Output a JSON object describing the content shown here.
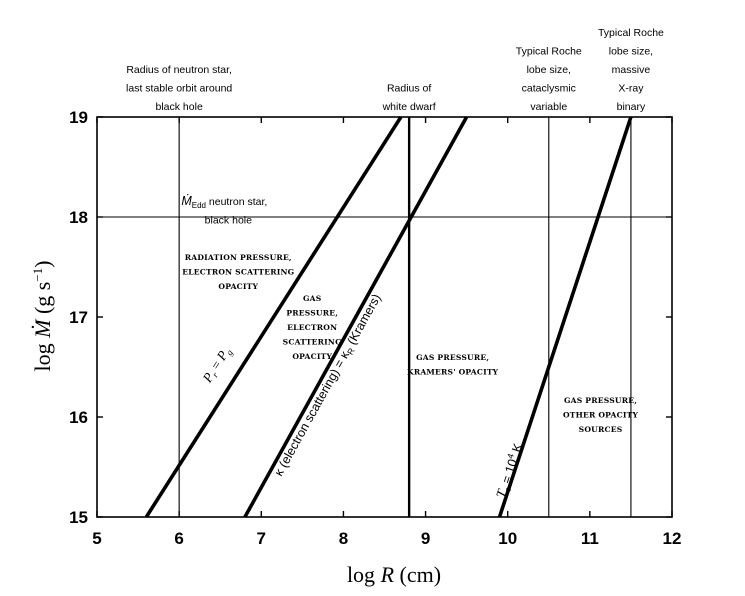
{
  "chart_data": {
    "type": "line",
    "xlabel_main": "log ",
    "xlabel_var": "R",
    "xlabel_unit": " (cm)",
    "ylabel_main": "log ",
    "ylabel_var": "Ṁ",
    "ylabel_unit": " (g s",
    "ylabel_exp": "−1",
    "ylabel_close": ")",
    "xlim": [
      5,
      12
    ],
    "ylim": [
      15,
      19
    ],
    "x_ticks": [
      5,
      6,
      7,
      8,
      9,
      10,
      11,
      12
    ],
    "y_ticks": [
      15,
      16,
      17,
      18,
      19
    ],
    "series": [
      {
        "id": "pr_eq_pg",
        "points": [
          [
            5.6,
            15.0
          ],
          [
            8.7,
            19.0
          ]
        ],
        "label_main": "P",
        "label_sub1": "r",
        "label_eq": " = ",
        "label_sub2": "g",
        "label_at": [
          6.5,
          16.5
        ],
        "stroke": "#000000"
      },
      {
        "id": "kappa_es_eq_kappa_r",
        "points": [
          [
            6.8,
            15.0
          ],
          [
            9.5,
            19.0
          ]
        ],
        "label_text1": "κ (electron scattering)  =  κ",
        "label_sub": "R",
        "label_text2": " (Kramers)",
        "label_at": [
          7.85,
          16.3
        ],
        "stroke": "#000000"
      },
      {
        "id": "tc_1e4",
        "points": [
          [
            9.9,
            15.0
          ],
          [
            11.5,
            19.0
          ]
        ],
        "label_main": "T",
        "label_sub": "c",
        "label_eq": " = 10",
        "label_sup": "4",
        "label_unit": " K",
        "label_at": [
          10.07,
          15.45
        ],
        "stroke": "#000000"
      }
    ],
    "reference_lines": [
      {
        "orientation": "vertical",
        "value": 6.0,
        "weight": "thin",
        "label": [
          "Radius of neutron star,",
          "last stable orbit around",
          "black hole"
        ]
      },
      {
        "orientation": "vertical",
        "value": 8.8,
        "weight": "thick",
        "label": [
          "Radius of",
          "white dwarf"
        ]
      },
      {
        "orientation": "vertical",
        "value": 10.5,
        "weight": "thin",
        "label": [
          "Typical Roche",
          "lobe size,",
          "cataclysmic",
          "variable"
        ]
      },
      {
        "orientation": "vertical",
        "value": 11.5,
        "weight": "thin",
        "label": [
          "Typical Roche",
          "lobe size,",
          "massive",
          "X-ray",
          "binary"
        ]
      },
      {
        "orientation": "horizontal",
        "value": 18.0,
        "weight": "thin",
        "label_main": "Ṁ",
        "label_sub": "Edd",
        "label_rest": " neutron star,",
        "label_line2": "black hole",
        "label_at": [
          6.55,
          18.12
        ]
      }
    ],
    "regions": [
      {
        "lines": [
          "RADIATION PRESSURE,",
          "ELECTRON SCATTERING",
          "OPACITY"
        ],
        "at": [
          6.72,
          17.57
        ]
      },
      {
        "lines": [
          "GAS",
          "PRESSURE,",
          "ELECTRON",
          "SCATTERING",
          "OPACITY"
        ],
        "at": [
          7.62,
          17.16
        ]
      },
      {
        "lines": [
          "GAS PRESSURE,",
          "KRAMERS' OPACITY"
        ],
        "at": [
          9.33,
          16.57
        ]
      },
      {
        "lines": [
          "GAS PRESSURE,",
          "OTHER   OPACITY",
          "SOURCES"
        ],
        "at": [
          11.13,
          16.14
        ]
      }
    ]
  }
}
